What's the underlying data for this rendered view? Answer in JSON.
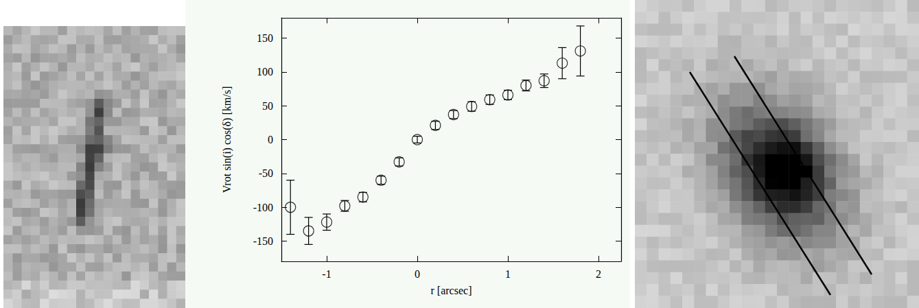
{
  "chart_data": {
    "type": "scatter",
    "x": [
      -1.4,
      -1.2,
      -1.0,
      -0.8,
      -0.6,
      -0.4,
      -0.2,
      0.0,
      0.2,
      0.4,
      0.6,
      0.8,
      1.0,
      1.2,
      1.4,
      1.6,
      1.8
    ],
    "values": [
      -100,
      -135,
      -122,
      -98,
      -85,
      -60,
      -33,
      0,
      21,
      37,
      49,
      59,
      66,
      80,
      87,
      113,
      131
    ],
    "errors": [
      40,
      20,
      12,
      8,
      7,
      6,
      6,
      5,
      6,
      6,
      7,
      7,
      7,
      8,
      10,
      23,
      37
    ],
    "xlabel": "r [arcsec]",
    "ylabel": "Vrot sin(i) cos(δ) [km/s]",
    "xlim": [
      -1.5,
      2.25
    ],
    "ylim": [
      -180,
      180
    ],
    "xticks": [
      -1,
      0,
      1,
      2
    ],
    "yticks": [
      -150,
      -100,
      -50,
      0,
      50,
      100,
      150
    ],
    "marker": "open_circle",
    "color": "#000000",
    "grid": false
  }
}
